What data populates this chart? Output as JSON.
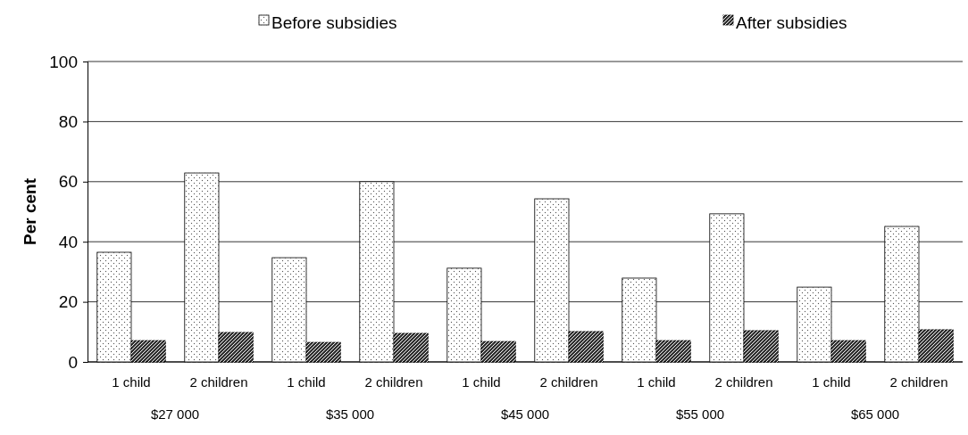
{
  "chart_data": {
    "type": "bar",
    "ylabel": "Per cent",
    "categories": [
      "1 child",
      "2 children",
      "1 child",
      "2 children",
      "1 child",
      "2 children",
      "1 child",
      "2 children",
      "1 child",
      "2 children"
    ],
    "series": [
      {
        "name": "Before subsidies",
        "color": "#ffffff",
        "values": [
          36.5,
          62.9,
          34.7,
          60,
          31.2,
          54.3,
          27.9,
          49.3,
          24.9,
          45.1
        ]
      },
      {
        "name": "After subsidies",
        "color": "#333333",
        "values": [
          7.1,
          9.8,
          6.5,
          9.5,
          6.8,
          10.1,
          7.1,
          10.4,
          7.1,
          10.7
        ]
      }
    ],
    "annotations": [
      "$27 000",
      "$35 000",
      "$45 000",
      "$55 000",
      "$65 000"
    ],
    "ylim": [
      0,
      100
    ],
    "yticks": [
      0,
      20,
      40,
      60,
      80,
      100
    ],
    "grid": "y",
    "legend": "top"
  }
}
